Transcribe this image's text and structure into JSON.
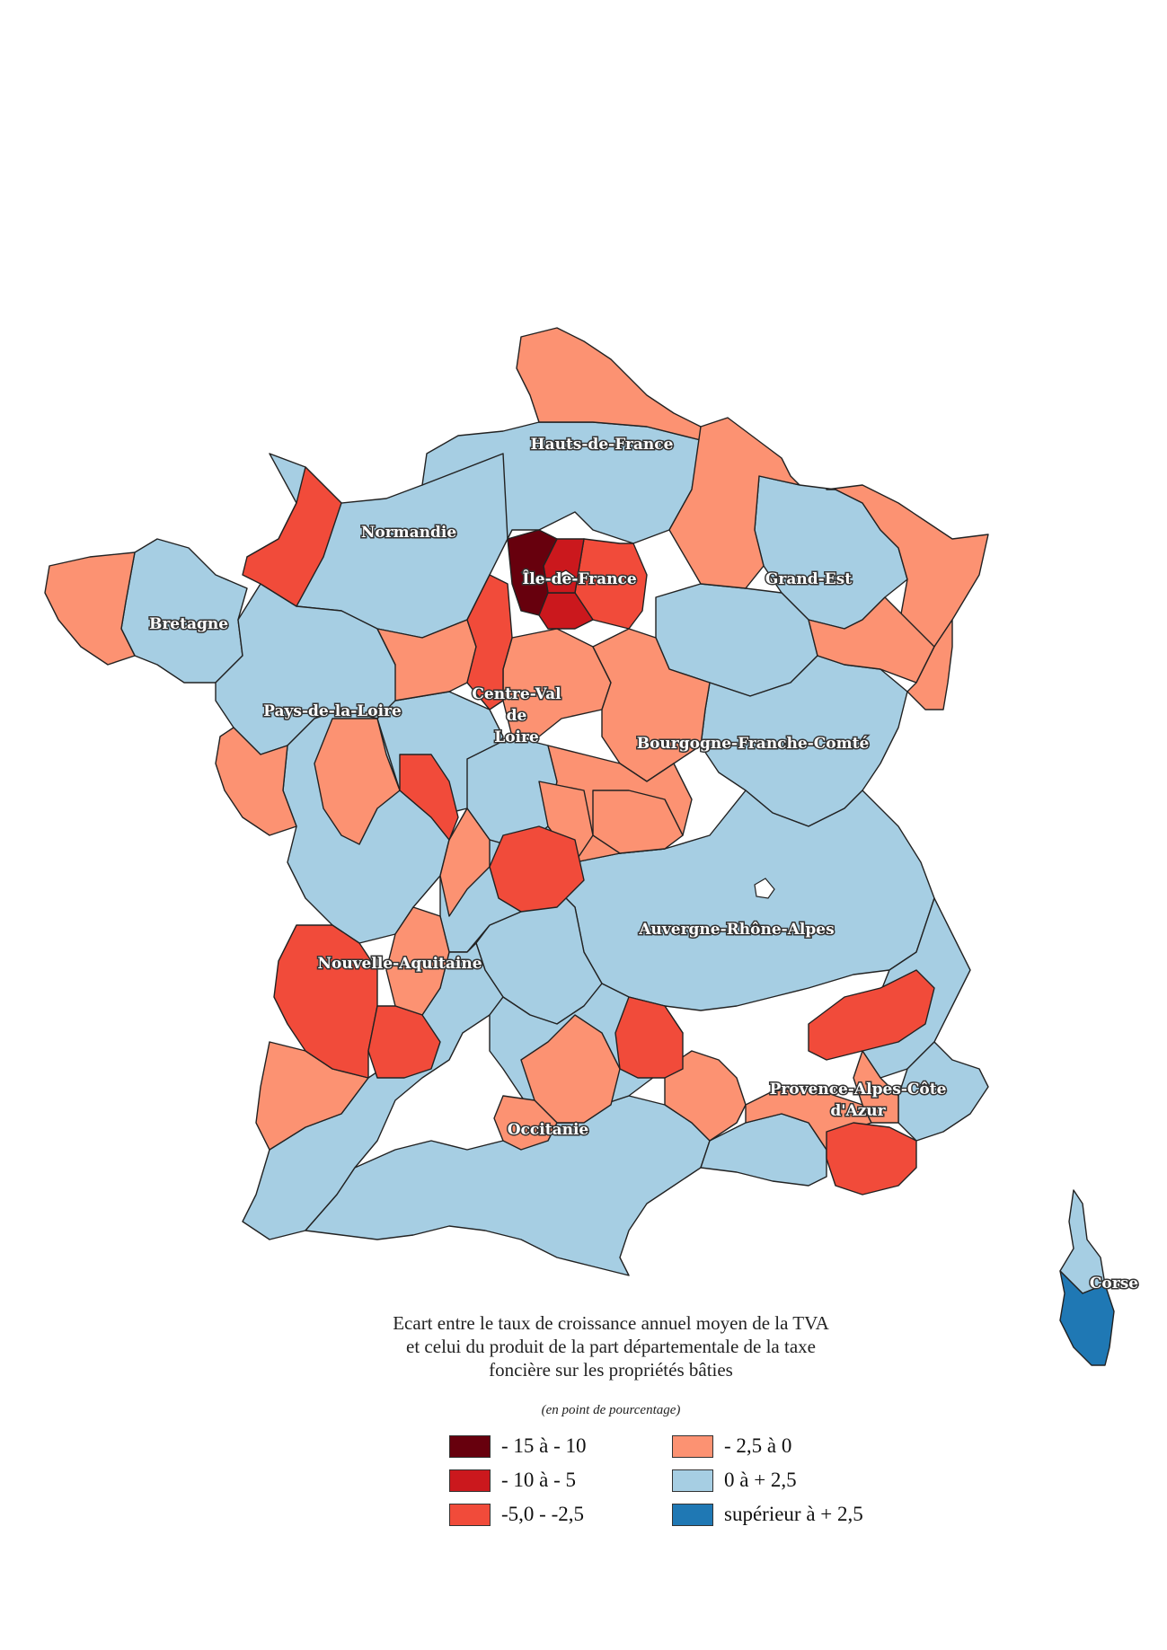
{
  "title_lines": [
    "Ecart entre le taux de croissance annuel moyen de la TVA",
    "et celui du produit de la part départementale de la taxe",
    "foncière sur les propriétés bâties"
  ],
  "subtitle": "(en point de pourcentage)",
  "legend": [
    {
      "label": "- 15 à - 10",
      "color": "#67000d"
    },
    {
      "label": "- 10 à - 5",
      "color": "#cb181d"
    },
    {
      "label": "-5,0 - -2,5",
      "color": "#f14b3a"
    },
    {
      "label": "- 2,5 à 0",
      "color": "#fc9272"
    },
    {
      "label": "0 à + 2,5",
      "color": "#a6cee3"
    },
    {
      "label": "supérieur à + 2,5",
      "color": "#1f78b4"
    }
  ],
  "regions": [
    "Hauts-de-France",
    "Normandie",
    "Île-de-France",
    "Grand-Est",
    "Bretagne",
    "Pays-de-la-Loire",
    "Centre-Val de Loire",
    "Bourgogne-Franche-Comté",
    "Auvergne-Rhône-Alpes",
    "Nouvelle-Aquitaine",
    "Provence-Alpes-Côte d'Azur",
    "Occitanie",
    "Corse"
  ],
  "region_label_lines": {
    "hdf": "Hauts-de-France",
    "nor": "Normandie",
    "idf": "Île-de-France",
    "ge": "Grand-Est",
    "bre": "Bretagne",
    "pdl": "Pays-de-la-Loire",
    "cvl1": "Centre-Val",
    "cvl2": "de",
    "cvl3": "Loire",
    "bfc": "Bourgogne-Franche-Comté",
    "ara": "Auvergne-Rhône-Alpes",
    "na": "Nouvelle-Aquitaine",
    "paca1": "Provence-Alpes-Côte",
    "paca2": "d'Azur",
    "occ": "Occitanie",
    "cor": "Corse"
  }
}
